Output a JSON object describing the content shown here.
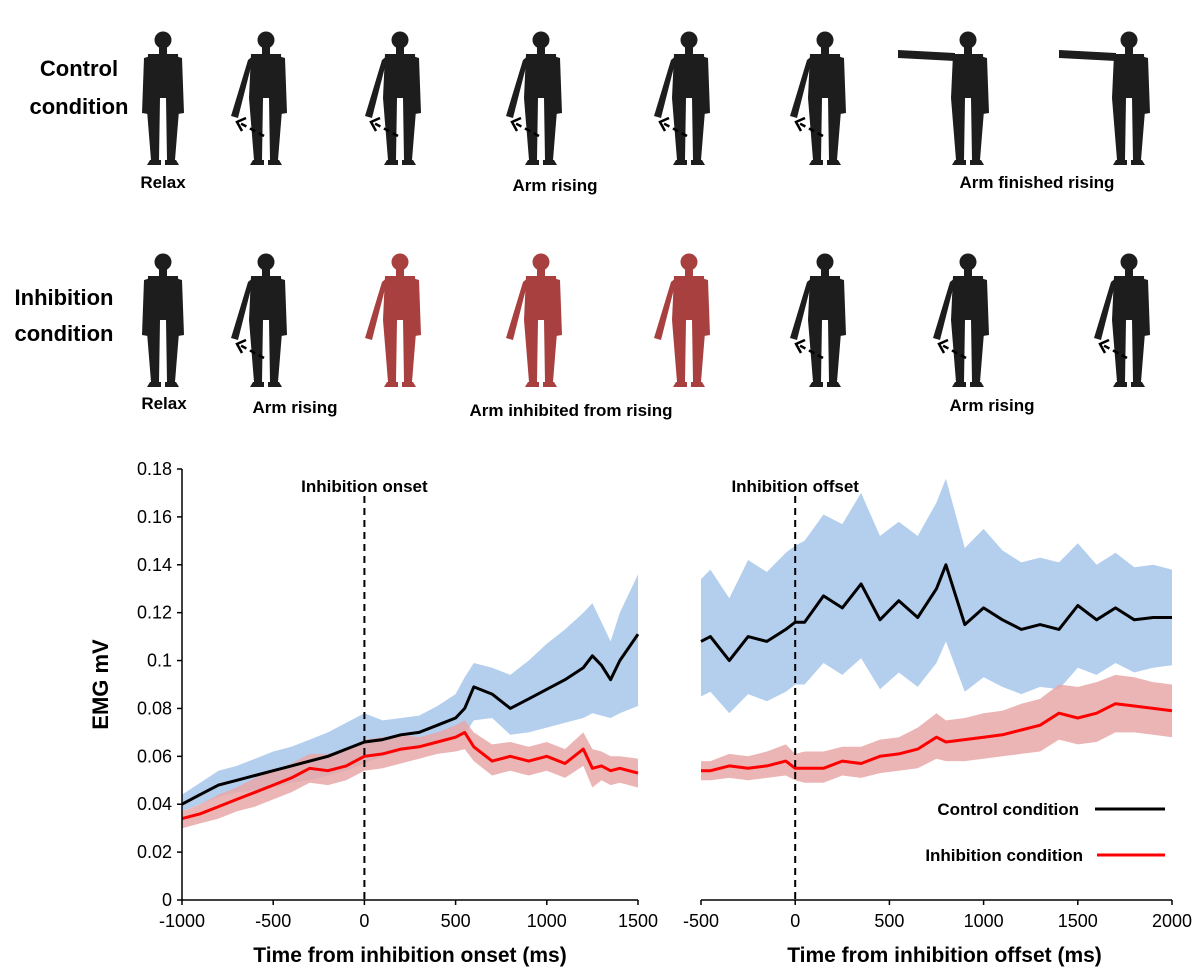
{
  "figure": {
    "rows": [
      {
        "title_line1": "Control",
        "title_line2": "condition",
        "title_color": "#000000",
        "captions": [
          "Relax",
          "Arm rising",
          "Arm finished rising"
        ],
        "figures": [
          "down",
          "angled",
          "angled",
          "angled",
          "angled",
          "angled",
          "horizontal",
          "horizontal"
        ]
      },
      {
        "title_line1": "Inhibition",
        "title_line2": "condition",
        "title_color": "#ff0000",
        "captions": [
          "Relax",
          "Arm rising",
          "Arm inhibited from rising",
          "Arm rising"
        ],
        "figures": [
          "down",
          "angled",
          "angled-red",
          "angled-red",
          "angled-red",
          "angled",
          "angled",
          "angled"
        ]
      }
    ]
  },
  "chart_data": [
    {
      "type": "line",
      "ylabel": "EMG mV",
      "xlabel": "Time from inhibition onset  (ms)",
      "xlim": [
        -1000,
        1500
      ],
      "ylim": [
        0,
        0.18
      ],
      "xticks": [
        "-1000",
        "-500",
        "0",
        "500",
        "1000",
        "1500"
      ],
      "yticks": [
        "0",
        "0.02",
        "0.04",
        "0.06",
        "0.08",
        "0.1",
        "0.12",
        "0.14",
        "0.16",
        "0.18"
      ],
      "vline": {
        "x": 0,
        "label": "Inhibition onset"
      },
      "x": [
        -1000,
        -900,
        -800,
        -700,
        -600,
        -500,
        -400,
        -300,
        -200,
        -100,
        0,
        100,
        200,
        300,
        400,
        500,
        550,
        600,
        700,
        800,
        900,
        1000,
        1100,
        1200,
        1250,
        1300,
        1350,
        1400,
        1500
      ],
      "series": [
        {
          "name": "Control condition",
          "color": "#000000",
          "band_color": "#a4c4ea",
          "values": [
            0.04,
            0.044,
            0.048,
            0.05,
            0.052,
            0.054,
            0.056,
            0.058,
            0.06,
            0.063,
            0.066,
            0.067,
            0.069,
            0.07,
            0.073,
            0.076,
            0.08,
            0.089,
            0.086,
            0.08,
            0.084,
            0.088,
            0.092,
            0.097,
            0.102,
            0.098,
            0.092,
            0.1,
            0.111
          ],
          "upper": [
            0.044,
            0.049,
            0.054,
            0.056,
            0.059,
            0.062,
            0.064,
            0.067,
            0.07,
            0.074,
            0.078,
            0.075,
            0.076,
            0.077,
            0.081,
            0.086,
            0.093,
            0.099,
            0.097,
            0.094,
            0.1,
            0.107,
            0.113,
            0.12,
            0.124,
            0.116,
            0.108,
            0.12,
            0.136
          ],
          "lower": [
            0.037,
            0.04,
            0.043,
            0.045,
            0.046,
            0.047,
            0.049,
            0.05,
            0.052,
            0.054,
            0.057,
            0.06,
            0.062,
            0.064,
            0.066,
            0.068,
            0.069,
            0.075,
            0.076,
            0.069,
            0.07,
            0.072,
            0.074,
            0.076,
            0.078,
            0.077,
            0.076,
            0.078,
            0.081
          ]
        },
        {
          "name": "Inhibition condition",
          "color": "#ff0000",
          "band_color": "#e8a5a5",
          "values": [
            0.034,
            0.036,
            0.039,
            0.042,
            0.045,
            0.048,
            0.051,
            0.055,
            0.054,
            0.056,
            0.06,
            0.061,
            0.063,
            0.064,
            0.066,
            0.068,
            0.07,
            0.064,
            0.058,
            0.06,
            0.058,
            0.06,
            0.057,
            0.063,
            0.055,
            0.056,
            0.054,
            0.055,
            0.053
          ],
          "upper": [
            0.037,
            0.04,
            0.044,
            0.047,
            0.051,
            0.054,
            0.057,
            0.061,
            0.061,
            0.063,
            0.067,
            0.068,
            0.069,
            0.068,
            0.07,
            0.073,
            0.075,
            0.07,
            0.065,
            0.066,
            0.064,
            0.066,
            0.063,
            0.07,
            0.063,
            0.062,
            0.06,
            0.06,
            0.059
          ],
          "lower": [
            0.03,
            0.032,
            0.034,
            0.037,
            0.039,
            0.042,
            0.045,
            0.049,
            0.048,
            0.05,
            0.054,
            0.055,
            0.057,
            0.059,
            0.061,
            0.062,
            0.063,
            0.058,
            0.052,
            0.054,
            0.052,
            0.054,
            0.051,
            0.056,
            0.047,
            0.05,
            0.048,
            0.049,
            0.047
          ]
        }
      ]
    },
    {
      "type": "line",
      "xlabel": "Time from inhibition offset (ms)",
      "xlim": [
        -500,
        2000
      ],
      "ylim": [
        0,
        0.18
      ],
      "xticks": [
        "-500",
        "0",
        "500",
        "1000",
        "1500",
        "2000"
      ],
      "vline": {
        "x": 0,
        "label": "Inhibition offset"
      },
      "legend_position": "bottom-right",
      "x": [
        -500,
        -450,
        -350,
        -250,
        -150,
        -50,
        0,
        50,
        150,
        250,
        350,
        450,
        550,
        650,
        750,
        800,
        900,
        1000,
        1100,
        1200,
        1300,
        1400,
        1500,
        1600,
        1700,
        1800,
        1900,
        2000
      ],
      "series": [
        {
          "name": "Control condition",
          "color": "#000000",
          "band_color": "#a4c4ea",
          "values": [
            0.108,
            0.11,
            0.1,
            0.11,
            0.108,
            0.113,
            0.116,
            0.116,
            0.127,
            0.122,
            0.132,
            0.117,
            0.125,
            0.118,
            0.13,
            0.14,
            0.115,
            0.122,
            0.117,
            0.113,
            0.115,
            0.113,
            0.123,
            0.117,
            0.122,
            0.117,
            0.118,
            0.118
          ],
          "upper": [
            0.134,
            0.138,
            0.126,
            0.142,
            0.137,
            0.145,
            0.148,
            0.15,
            0.161,
            0.157,
            0.17,
            0.152,
            0.158,
            0.152,
            0.166,
            0.176,
            0.147,
            0.155,
            0.146,
            0.141,
            0.143,
            0.141,
            0.149,
            0.14,
            0.145,
            0.139,
            0.14,
            0.138
          ],
          "lower": [
            0.085,
            0.087,
            0.078,
            0.086,
            0.083,
            0.087,
            0.09,
            0.09,
            0.099,
            0.094,
            0.101,
            0.088,
            0.095,
            0.089,
            0.099,
            0.108,
            0.087,
            0.093,
            0.089,
            0.086,
            0.089,
            0.088,
            0.097,
            0.094,
            0.099,
            0.095,
            0.097,
            0.098
          ]
        },
        {
          "name": "Inhibition condition",
          "color": "#ff0000",
          "band_color": "#e8a5a5",
          "values": [
            0.054,
            0.054,
            0.056,
            0.055,
            0.056,
            0.058,
            0.055,
            0.055,
            0.055,
            0.058,
            0.057,
            0.06,
            0.061,
            0.063,
            0.068,
            0.066,
            0.067,
            0.068,
            0.069,
            0.071,
            0.073,
            0.078,
            0.076,
            0.078,
            0.082,
            0.081,
            0.08,
            0.079
          ],
          "upper": [
            0.058,
            0.058,
            0.061,
            0.06,
            0.062,
            0.065,
            0.061,
            0.062,
            0.062,
            0.064,
            0.064,
            0.067,
            0.068,
            0.072,
            0.078,
            0.075,
            0.076,
            0.078,
            0.079,
            0.082,
            0.084,
            0.09,
            0.089,
            0.091,
            0.094,
            0.093,
            0.091,
            0.09
          ],
          "lower": [
            0.05,
            0.05,
            0.051,
            0.05,
            0.051,
            0.052,
            0.05,
            0.049,
            0.049,
            0.052,
            0.051,
            0.053,
            0.054,
            0.055,
            0.059,
            0.058,
            0.058,
            0.059,
            0.06,
            0.061,
            0.062,
            0.067,
            0.065,
            0.066,
            0.07,
            0.07,
            0.069,
            0.068
          ]
        }
      ]
    }
  ]
}
